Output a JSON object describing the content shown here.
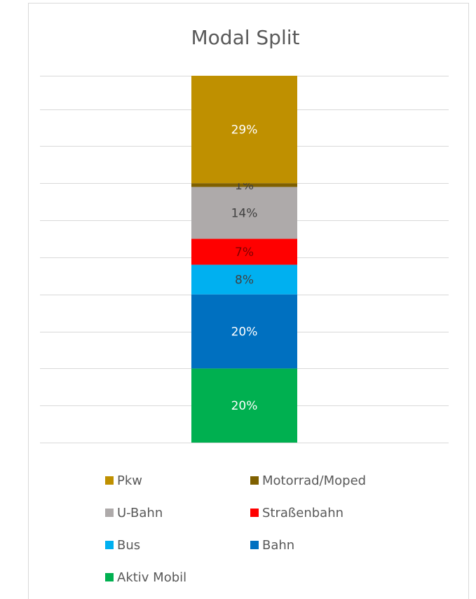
{
  "chart_data": {
    "type": "stacked_bar",
    "title": "Modal Split",
    "categories": [
      null
    ],
    "series": [
      {
        "name": "Aktiv Mobil",
        "color": "#00b050",
        "label_color": "#ffffff",
        "values": [
          20
        ],
        "value_labels": [
          "20%"
        ]
      },
      {
        "name": "Bahn",
        "color": "#0070c0",
        "label_color": "#ffffff",
        "values": [
          20
        ],
        "value_labels": [
          "20%"
        ]
      },
      {
        "name": "Bus",
        "color": "#00b0f0",
        "label_color": "#404040",
        "values": [
          8
        ],
        "value_labels": [
          "8%"
        ]
      },
      {
        "name": "Straßenbahn",
        "color": "#ff0000",
        "label_color": "#7f0000",
        "values": [
          7
        ],
        "value_labels": [
          "7%"
        ]
      },
      {
        "name": "U-Bahn",
        "color": "#aeaaaa",
        "label_color": "#404040",
        "values": [
          14
        ],
        "value_labels": [
          "14%"
        ]
      },
      {
        "name": "Motorrad/Moped",
        "color": "#7f6000",
        "label_color": "#404040",
        "values": [
          1
        ],
        "value_labels": [
          "1%"
        ]
      },
      {
        "name": "Pkw",
        "color": "#bf9000",
        "label_color": "#ffffff",
        "values": [
          29
        ],
        "value_labels": [
          "29%"
        ]
      }
    ],
    "ylim": [
      0,
      99
    ],
    "yticks": [
      0,
      10,
      20,
      30,
      40,
      50,
      60,
      70,
      80,
      90
    ],
    "grid": true,
    "legend": "bottom"
  }
}
